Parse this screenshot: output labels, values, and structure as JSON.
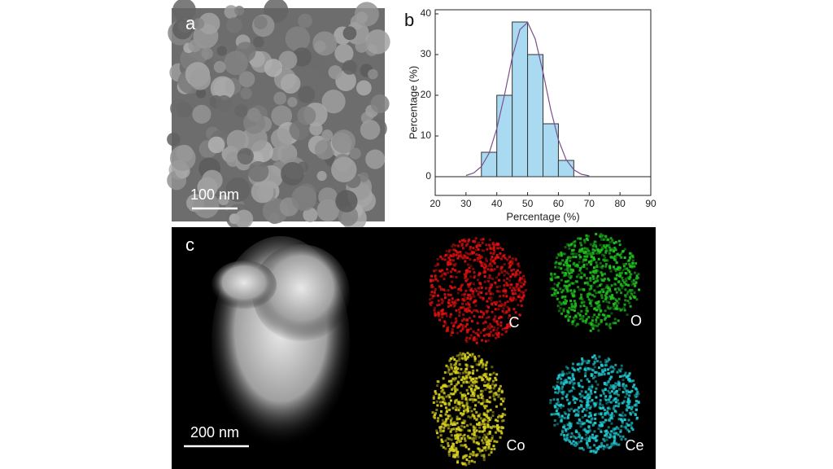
{
  "panels": {
    "a": {
      "label": "a",
      "scale_bar": "100 nm"
    },
    "b": {
      "label": "b"
    },
    "c": {
      "label": "c",
      "scale_bar": "200 nm",
      "maps": [
        "C",
        "O",
        "Co",
        "Ce"
      ]
    }
  },
  "chart_data": {
    "type": "histogram",
    "xlabel": "Percentage (%)",
    "ylabel": "Percentage (%)",
    "bins": [
      35,
      40,
      45,
      50,
      55,
      60,
      65
    ],
    "values": [
      6,
      20,
      38,
      30,
      13,
      4
    ],
    "color": "#a9daf2",
    "fit": {
      "color": "#7b4f8c",
      "x": [
        30,
        32.5,
        35,
        37.5,
        40,
        42.5,
        45,
        47.5,
        50,
        52.5,
        55,
        57.5,
        60,
        62.5,
        65,
        67.5,
        70
      ],
      "values": [
        0.3,
        0.9,
        2.5,
        5.8,
        11.8,
        20.1,
        29.2,
        36.1,
        37.9,
        33.8,
        25.7,
        16.5,
        9.1,
        4.2,
        1.7,
        0.6,
        0.2
      ]
    },
    "xlim": [
      20,
      90
    ],
    "xticks": [
      20,
      30,
      40,
      50,
      60,
      70,
      80,
      90
    ],
    "ylim": [
      -4.6,
      41
    ],
    "yticks": [
      0,
      10,
      20,
      30,
      40
    ]
  }
}
